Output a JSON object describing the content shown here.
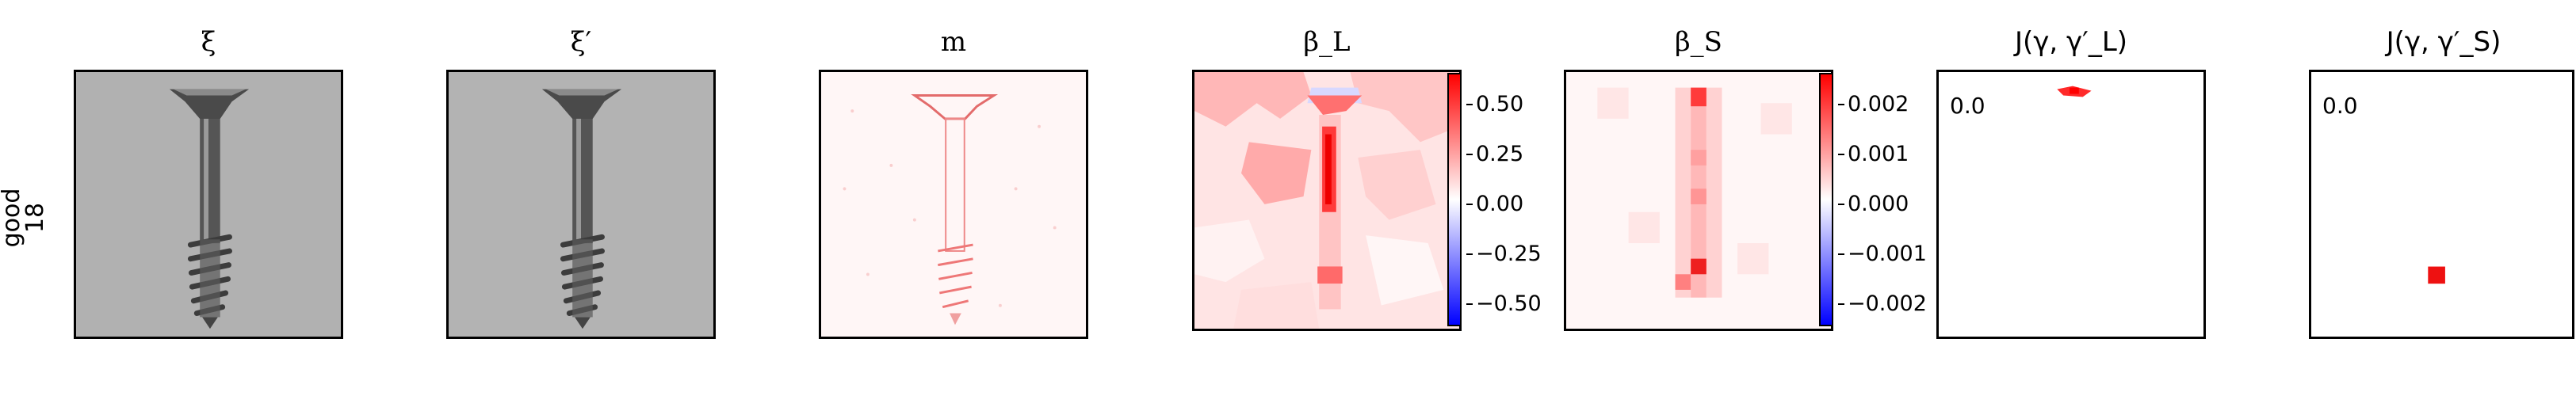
{
  "row_label": "good\n18",
  "panels": [
    {
      "title": "ξ"
    },
    {
      "title": "ξ′"
    },
    {
      "title": "m"
    },
    {
      "title": "β_L"
    },
    {
      "title": "β_S"
    },
    {
      "title": "J(γ, γ′_L)",
      "score": "0.0"
    },
    {
      "title": "J(γ, γ′_S)",
      "score": "0.0"
    }
  ],
  "colorbar_L": {
    "ticks": [
      "0.50",
      "0.25",
      "0.00",
      "−0.25",
      "−0.50"
    ],
    "range": [
      -0.62,
      0.62
    ]
  },
  "colorbar_S": {
    "ticks": [
      "0.002",
      "0.001",
      "0.000",
      "−0.001",
      "−0.002"
    ],
    "range": [
      -0.0026,
      0.0026
    ]
  },
  "colors": {
    "accent_red": "#ff0000",
    "accent_blue": "#0000ff",
    "image_gray": "#b4b4b4"
  }
}
